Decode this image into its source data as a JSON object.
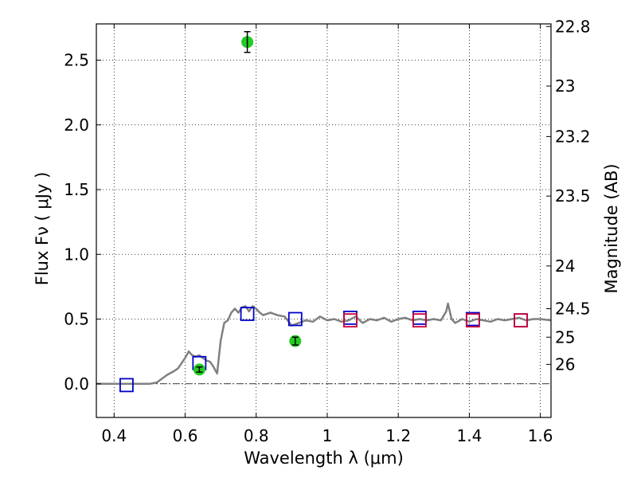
{
  "chart_data": {
    "type": "scatter",
    "title": "",
    "xlabel": "Wavelength  λ (μm)",
    "ylabel": "Flux  Fν  ( μJy )",
    "y2label": "Magnitude (AB)",
    "xlim": [
      0.35,
      1.63
    ],
    "ylim": [
      -0.26,
      2.78
    ],
    "grid": true,
    "xticks": [
      0.4,
      0.6,
      0.8,
      1.0,
      1.2,
      1.4,
      1.6
    ],
    "xtick_labels": [
      "0.4",
      "0.6",
      "0.8",
      "1",
      "1.2",
      "1.4",
      "1.6"
    ],
    "yticks": [
      0.0,
      0.5,
      1.0,
      1.5,
      2.0,
      2.5
    ],
    "ytick_labels": [
      "0.0",
      "0.5",
      "1.0",
      "1.5",
      "2.0",
      "2.5"
    ],
    "y2ticks": [
      {
        "label": "22.8",
        "flux": 2.76
      },
      {
        "label": "23",
        "flux": 2.3
      },
      {
        "label": "23.2",
        "flux": 1.91
      },
      {
        "label": "23.5",
        "flux": 1.45
      },
      {
        "label": "24",
        "flux": 0.91
      },
      {
        "label": "24.5",
        "flux": 0.58
      },
      {
        "label": "25",
        "flux": 0.36
      },
      {
        "label": "26",
        "flux": 0.15
      }
    ],
    "series": [
      {
        "kind": "line",
        "color": "#808080",
        "x": [
          0.35,
          0.45,
          0.5,
          0.52,
          0.55,
          0.57,
          0.58,
          0.59,
          0.6,
          0.61,
          0.62,
          0.63,
          0.64,
          0.65,
          0.66,
          0.67,
          0.68,
          0.69,
          0.7,
          0.71,
          0.72,
          0.73,
          0.74,
          0.75,
          0.76,
          0.77,
          0.78,
          0.79,
          0.8,
          0.81,
          0.82,
          0.84,
          0.86,
          0.88,
          0.9,
          0.92,
          0.94,
          0.96,
          0.98,
          1.0,
          1.02,
          1.04,
          1.06,
          1.08,
          1.1,
          1.12,
          1.14,
          1.16,
          1.18,
          1.2,
          1.22,
          1.24,
          1.26,
          1.28,
          1.3,
          1.32,
          1.335,
          1.34,
          1.35,
          1.36,
          1.38,
          1.4,
          1.42,
          1.44,
          1.46,
          1.48,
          1.5,
          1.52,
          1.54,
          1.56,
          1.58,
          1.6,
          1.63
        ],
        "y": [
          0.0,
          0.0,
          0.0,
          0.01,
          0.07,
          0.1,
          0.12,
          0.16,
          0.2,
          0.25,
          0.22,
          0.21,
          0.22,
          0.2,
          0.18,
          0.17,
          0.13,
          0.08,
          0.33,
          0.47,
          0.49,
          0.55,
          0.58,
          0.55,
          0.59,
          0.6,
          0.56,
          0.6,
          0.58,
          0.55,
          0.53,
          0.55,
          0.53,
          0.52,
          0.45,
          0.47,
          0.49,
          0.48,
          0.52,
          0.49,
          0.5,
          0.48,
          0.49,
          0.52,
          0.47,
          0.5,
          0.49,
          0.51,
          0.48,
          0.5,
          0.51,
          0.49,
          0.5,
          0.49,
          0.5,
          0.49,
          0.56,
          0.62,
          0.5,
          0.47,
          0.5,
          0.48,
          0.5,
          0.49,
          0.48,
          0.5,
          0.49,
          0.5,
          0.51,
          0.49,
          0.5,
          0.5,
          0.49
        ]
      },
      {
        "kind": "open-square",
        "color": "#0000cc",
        "x": [
          0.435,
          0.64,
          0.775,
          0.91,
          1.065,
          1.26,
          1.41,
          1.545
        ],
        "y": [
          -0.01,
          0.16,
          0.54,
          0.5,
          0.51,
          0.51,
          0.5,
          0.49
        ]
      },
      {
        "kind": "open-square",
        "color": "#cc0033",
        "x": [
          1.065,
          1.26,
          1.41,
          1.545
        ],
        "y": [
          0.49,
          0.49,
          0.49,
          0.49
        ]
      },
      {
        "kind": "filled-circle",
        "color": "#22cc22",
        "x": [
          0.64,
          0.775,
          0.91
        ],
        "y": [
          0.11,
          2.64,
          0.33
        ],
        "err": [
          0.02,
          0.08,
          0.03
        ]
      }
    ]
  }
}
